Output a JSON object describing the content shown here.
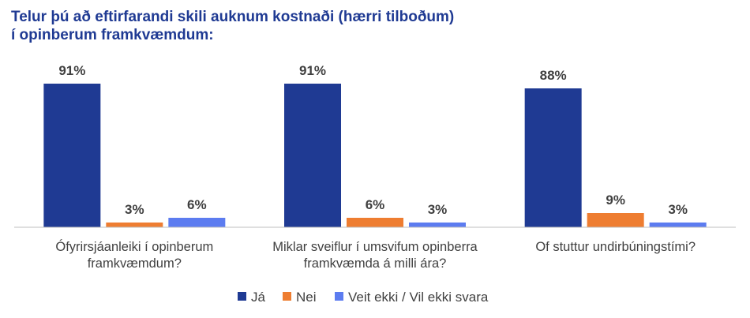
{
  "title_lines": [
    "Telur þú að eftirfarandi skili auknum kostnaði (hærri tilboðum)",
    "í opinberum framkvæmdum:"
  ],
  "chart_data": {
    "type": "bar",
    "title": "Telur þú að eftirfarandi skili auknum kostnaði (hærri tilboðum) í opinberum framkvæmdum:",
    "categories": [
      [
        "Ófyrirsjáanleiki í opinberum",
        "framkvæmdum?"
      ],
      [
        "Miklar sveiflur í umsvifum opinberra",
        "framkvæmda á milli ára?"
      ],
      [
        "Of stuttur undirbúningstími?"
      ]
    ],
    "series": [
      {
        "name": "Já",
        "color": "#1f3a93",
        "values": [
          91,
          91,
          88
        ]
      },
      {
        "name": "Nei",
        "color": "#ee7d31",
        "values": [
          3,
          6,
          9
        ]
      },
      {
        "name": "Veit ekki / Vil ekki svara",
        "color": "#5c7cf0",
        "values": [
          6,
          3,
          3
        ]
      }
    ],
    "value_suffix": "%",
    "ylim": [
      0,
      100
    ],
    "grid": false,
    "legend_position": "bottom"
  }
}
